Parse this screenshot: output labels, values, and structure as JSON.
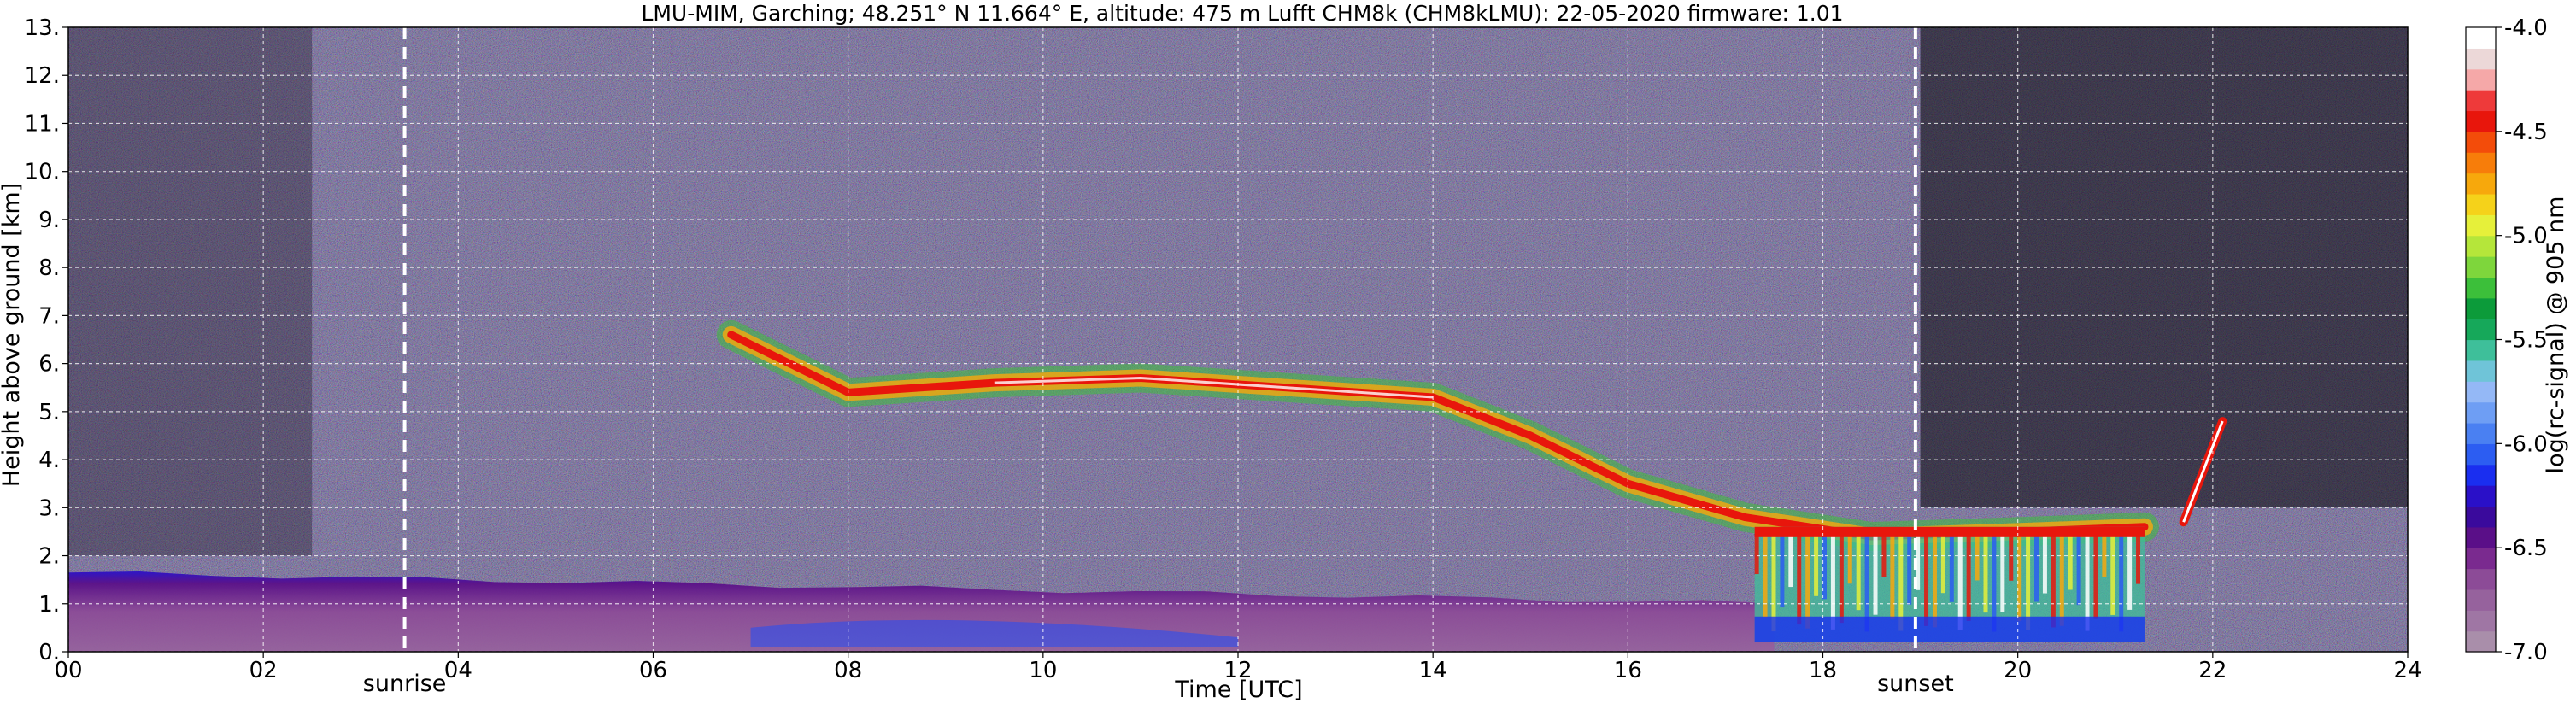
{
  "chart_data": {
    "type": "heatmap",
    "title": "LMU-MIM, Garching; 48.251° N 11.664° E, altitude: 475 m    Lufft CHM8k (CHM8kLMU): 22-05-2020    firmware: 1.01",
    "xlabel": "Time [UTC]",
    "ylabel": "Height above ground [km]",
    "xlim": [
      0,
      24
    ],
    "ylim": [
      0,
      13
    ],
    "x_ticks": [
      "00",
      "02",
      "04",
      "06",
      "08",
      "10",
      "12",
      "14",
      "16",
      "18",
      "20",
      "22",
      "24"
    ],
    "y_ticks": [
      "0.",
      "1.",
      "2.",
      "3.",
      "4.",
      "5.",
      "6.",
      "7.",
      "8.",
      "9.",
      "10.",
      "11.",
      "12.",
      "13."
    ],
    "grid": true,
    "events": [
      {
        "label": "sunrise",
        "time": 3.45
      },
      {
        "label": "sunset",
        "time": 18.95
      }
    ],
    "colorbar": {
      "label": "log(rc-signal) @ 905 nm",
      "range": [
        -7.0,
        -4.0
      ],
      "ticks": [
        "-4.0",
        "-4.5",
        "-5.0",
        "-5.5",
        "-6.0",
        "-6.5",
        "-7.0"
      ],
      "colors": [
        "#a98eaa",
        "#9f76a4",
        "#96629d",
        "#8c4b97",
        "#7a2a8f",
        "#5a0f88",
        "#3a0a9c",
        "#2a10c8",
        "#1a2ef0",
        "#2c5df2",
        "#4a80f2",
        "#6e9ef4",
        "#94b8f6",
        "#6fc4d8",
        "#3ebf9a",
        "#16a85a",
        "#0c9b3a",
        "#3cbf3a",
        "#7ed63c",
        "#b5e63a",
        "#e6f03a",
        "#f5d21a",
        "#f7a80c",
        "#f77d0a",
        "#f34c0a",
        "#e8160c",
        "#ee3a3a",
        "#f5a8a8",
        "#ecd8d8",
        "#ffffff"
      ]
    },
    "features": [
      {
        "name": "boundary layer aerosol",
        "time_range": [
          0,
          17.5
        ],
        "height_top_km": [
          1.65,
          1.0
        ]
      },
      {
        "name": "cirrus / mid-level cloud",
        "time": [
          6.8,
          8.0,
          9.5,
          11.0,
          12.5,
          14.0,
          15.0,
          16.0,
          17.2,
          18.5,
          20.0,
          21.3
        ],
        "height_km": [
          6.6,
          5.4,
          5.6,
          5.7,
          5.5,
          5.3,
          4.5,
          3.5,
          2.8,
          2.4,
          2.5,
          2.6
        ]
      },
      {
        "name": "precipitation fall streaks",
        "time_range": [
          17.3,
          21.3
        ],
        "height_range_km": [
          0.2,
          2.6
        ]
      },
      {
        "name": "rising cloud layer",
        "time": [
          21.7,
          22.1
        ],
        "height_km": [
          2.7,
          4.8
        ]
      }
    ]
  }
}
